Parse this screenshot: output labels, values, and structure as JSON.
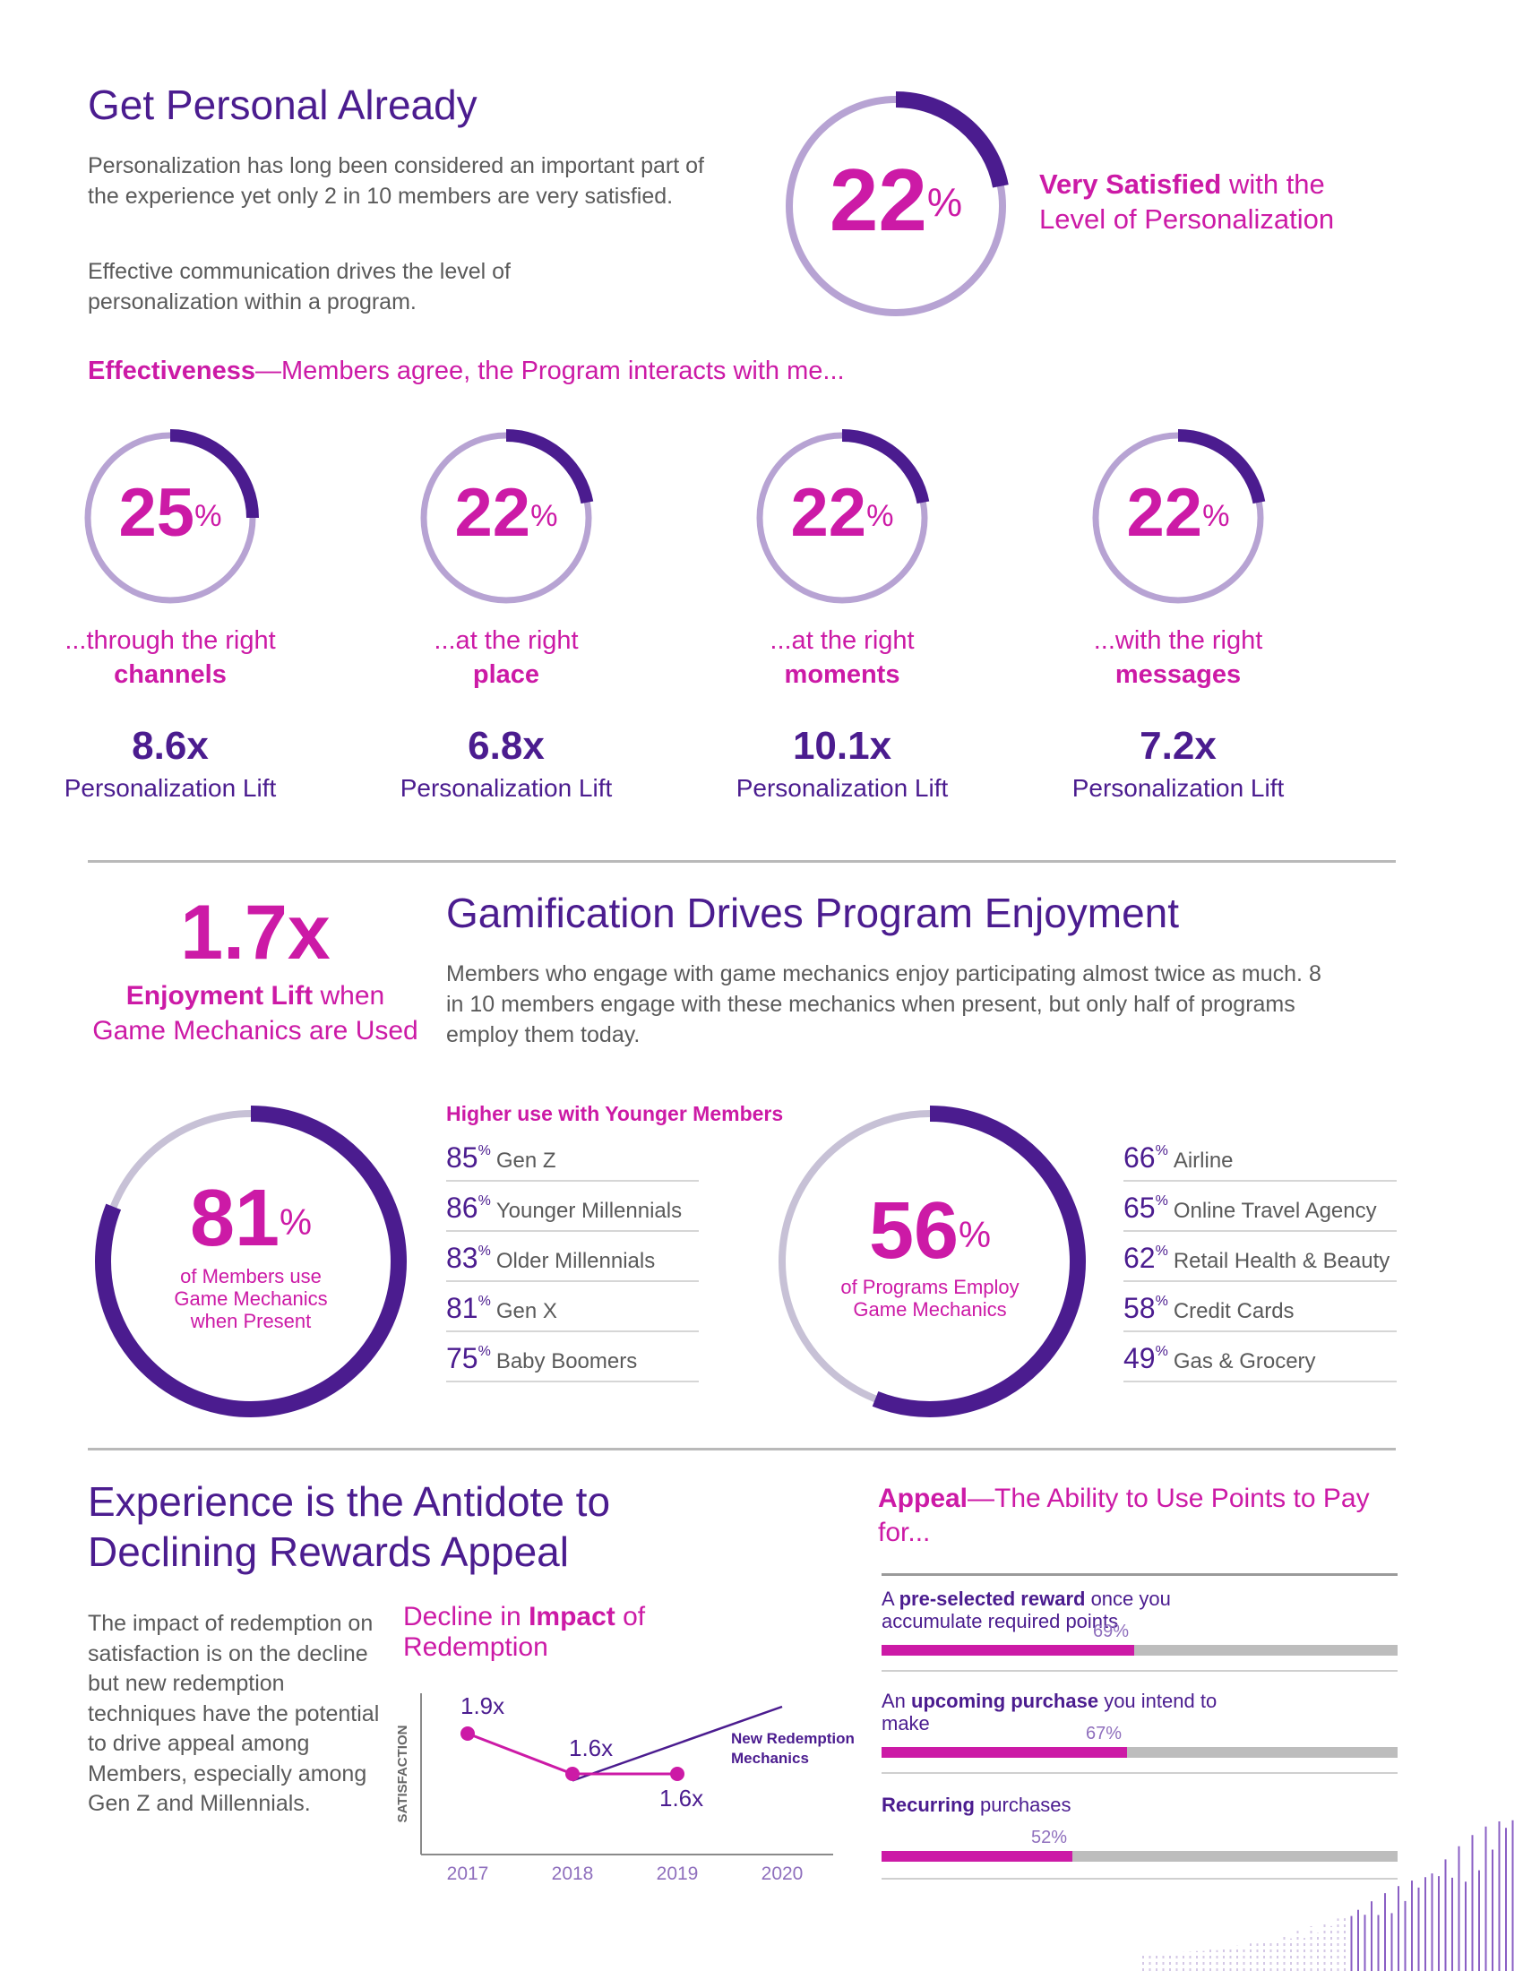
{
  "section1": {
    "title": "Get Personal Already",
    "para1": "Personalization has long been considered an important part of the experience yet only 2 in 10 members are very satisfied.",
    "para2": "Effective communication drives the level of personalization within a program.",
    "headline_pct": "22",
    "pct_sign": "%",
    "headline_value": 0.22,
    "headline_bold": "Very Satisfied",
    "headline_rest1": " with the",
    "headline_rest2": "Level of Personalization"
  },
  "effectiveness": {
    "lead_bold": "Effectiveness",
    "lead_rest": "—Members agree, the Program interacts with me...",
    "items": [
      {
        "pct": "25",
        "value": 0.25,
        "line1": "...through the right",
        "line2": "channels",
        "lift": "8.6x",
        "lift_label": "Personalization Lift"
      },
      {
        "pct": "22",
        "value": 0.22,
        "line1": "...at the right",
        "line2": "place",
        "lift": "6.8x",
        "lift_label": "Personalization Lift"
      },
      {
        "pct": "22",
        "value": 0.22,
        "line1": "...at the right",
        "line2": "moments",
        "lift": "10.1x",
        "lift_label": "Personalization Lift"
      },
      {
        "pct": "22",
        "value": 0.22,
        "line1": "...with the right",
        "line2": "messages",
        "lift": "7.2x",
        "lift_label": "Personalization Lift"
      }
    ]
  },
  "gamification": {
    "lift": "1.7x",
    "lift_bold": "Enjoyment Lift",
    "lift_rest": " when",
    "lift_line2": "Game Mechanics are Used",
    "title": "Gamification Drives Program Enjoyment",
    "body": "Members who engage with game mechanics enjoy participating almost twice as much. 8 in 10 members engage with these mechanics when present, but only half of programs employ them today.",
    "members_pct": "81",
    "members_value": 0.81,
    "members_label": "of Members use Game Mechanics when Present",
    "younger_title": "Higher use with Younger Members",
    "generations": [
      {
        "pct": "85",
        "label": "Gen Z"
      },
      {
        "pct": "86",
        "label": "Younger Millennials"
      },
      {
        "pct": "83",
        "label": "Older Millennials"
      },
      {
        "pct": "81",
        "label": "Gen X"
      },
      {
        "pct": "75",
        "label": "Baby Boomers"
      }
    ],
    "programs_pct": "56",
    "programs_value": 0.56,
    "programs_label": "of Programs Employ Game Mechanics",
    "industries": [
      {
        "pct": "66",
        "label": "Airline"
      },
      {
        "pct": "65",
        "label": "Online Travel Agency"
      },
      {
        "pct": "62",
        "label": "Retail Health & Beauty"
      },
      {
        "pct": "58",
        "label": "Credit Cards"
      },
      {
        "pct": "49",
        "label": "Gas & Grocery"
      }
    ]
  },
  "experience": {
    "title_line1": "Experience is the Antidote to",
    "title_line2": "Declining Rewards Appeal",
    "body": "The impact of redemption on satisfaction is on the decline but new redemption techniques have the potential to drive appeal among Members, especially among Gen Z and Millennials.",
    "chart_title_pre": "Decline in ",
    "chart_title_bold": "Impact",
    "chart_title_post": " of",
    "chart_title_line2": "Redemption",
    "new_redemption_label": "New Redemption Mechanics",
    "appeal_bold": "Appeal",
    "appeal_rest": "—The Ability to Use Points to Pay for...",
    "bars": [
      {
        "pre": "A ",
        "bold": "pre-selected reward",
        "post": " once you accumulate required points",
        "pct_label": "69%",
        "value": 0.69
      },
      {
        "pre": "An ",
        "bold": "upcoming purchase",
        "post": " you intend to make",
        "pct_label": "67%",
        "value": 0.67
      },
      {
        "pre": "",
        "bold": "Recurring",
        "post": " purchases",
        "pct_label": "52%",
        "value": 0.52
      }
    ]
  },
  "chart_data": {
    "type": "line",
    "title": "Decline in Impact of Redemption",
    "xlabel": "",
    "ylabel": "SATISFACTION",
    "categories": [
      "2017",
      "2018",
      "2019",
      "2020"
    ],
    "series": [
      {
        "name": "Impact of Redemption",
        "x": [
          "2017",
          "2018",
          "2019"
        ],
        "values": [
          1.9,
          1.6,
          1.6
        ],
        "labels": [
          "1.9x",
          "1.6x",
          "1.6x"
        ]
      },
      {
        "name": "New Redemption Mechanics",
        "x": [
          "2018",
          "2020"
        ],
        "values": [
          1.55,
          2.1
        ],
        "labels": []
      }
    ],
    "ylim": [
      1.0,
      2.2
    ]
  },
  "colors": {
    "purple": "#4b1c8f",
    "magenta": "#cc1aa6",
    "light_purple": "#b7a3d3",
    "grey": "#bdbdbd"
  }
}
